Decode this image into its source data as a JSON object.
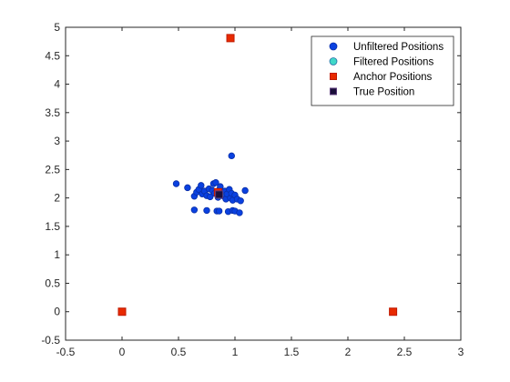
{
  "chart_data": {
    "type": "scatter",
    "title": "",
    "xlabel": "",
    "ylabel": "",
    "xlim": [
      -0.5,
      3
    ],
    "ylim": [
      -0.5,
      5
    ],
    "grid": false,
    "legend_position": "top-right",
    "x_ticks": [
      "-0.5",
      "0",
      "0.5",
      "1",
      "1.5",
      "2",
      "2.5",
      "3"
    ],
    "y_ticks": [
      "-0.5",
      "0",
      "0.5",
      "1",
      "1.5",
      "2",
      "2.5",
      "3",
      "3.5",
      "4",
      "4.5",
      "5"
    ],
    "series": [
      {
        "name": "Unfiltered Positions",
        "marker": "circle",
        "color": "#0a41e0",
        "edge_color": "#0a2fa8",
        "points": [
          [
            0.48,
            2.25
          ],
          [
            0.58,
            2.18
          ],
          [
            0.64,
            2.03
          ],
          [
            0.66,
            2.1
          ],
          [
            0.68,
            2.15
          ],
          [
            0.7,
            2.22
          ],
          [
            0.71,
            2.07
          ],
          [
            0.73,
            2.12
          ],
          [
            0.75,
            2.04
          ],
          [
            0.77,
            2.16
          ],
          [
            0.78,
            2.02
          ],
          [
            0.8,
            2.13
          ],
          [
            0.81,
            2.25
          ],
          [
            0.82,
            2.08
          ],
          [
            0.83,
            2.27
          ],
          [
            0.85,
            2.01
          ],
          [
            0.86,
            2.14
          ],
          [
            0.87,
            2.2
          ],
          [
            0.88,
            2.05
          ],
          [
            0.89,
            2.1
          ],
          [
            0.9,
            2.03
          ],
          [
            0.91,
            2.12
          ],
          [
            0.92,
            1.98
          ],
          [
            0.93,
            2.07
          ],
          [
            0.95,
            2.15
          ],
          [
            0.96,
            2.0
          ],
          [
            0.97,
            2.08
          ],
          [
            0.98,
            1.96
          ],
          [
            1.0,
            2.05
          ],
          [
            1.02,
            1.98
          ],
          [
            1.05,
            1.95
          ],
          [
            1.09,
            2.13
          ],
          [
            0.64,
            1.79
          ],
          [
            0.75,
            1.78
          ],
          [
            0.84,
            1.77
          ],
          [
            0.86,
            1.77
          ],
          [
            0.94,
            1.76
          ],
          [
            0.98,
            1.78
          ],
          [
            1.0,
            1.77
          ],
          [
            1.04,
            1.74
          ],
          [
            0.97,
            2.74
          ]
        ]
      },
      {
        "name": "Filtered Positions",
        "marker": "circle",
        "color": "#3fd8c8",
        "edge_color": "#2a6fa8",
        "points": [
          [
            0.86,
            2.04
          ],
          [
            0.87,
            2.06
          ]
        ]
      },
      {
        "name": "Anchor Positions",
        "marker": "square",
        "color": "#e82a00",
        "edge_color": "#c01a00",
        "points": [
          [
            0.96,
            4.81
          ],
          [
            0.0,
            0.0
          ],
          [
            2.4,
            0.0
          ],
          [
            0.85,
            2.1
          ]
        ]
      },
      {
        "name": "True Position",
        "marker": "square",
        "color": "#1a0f3a",
        "edge_color": "#5a3a7a",
        "points": [
          [
            0.86,
            2.06
          ]
        ]
      }
    ]
  }
}
